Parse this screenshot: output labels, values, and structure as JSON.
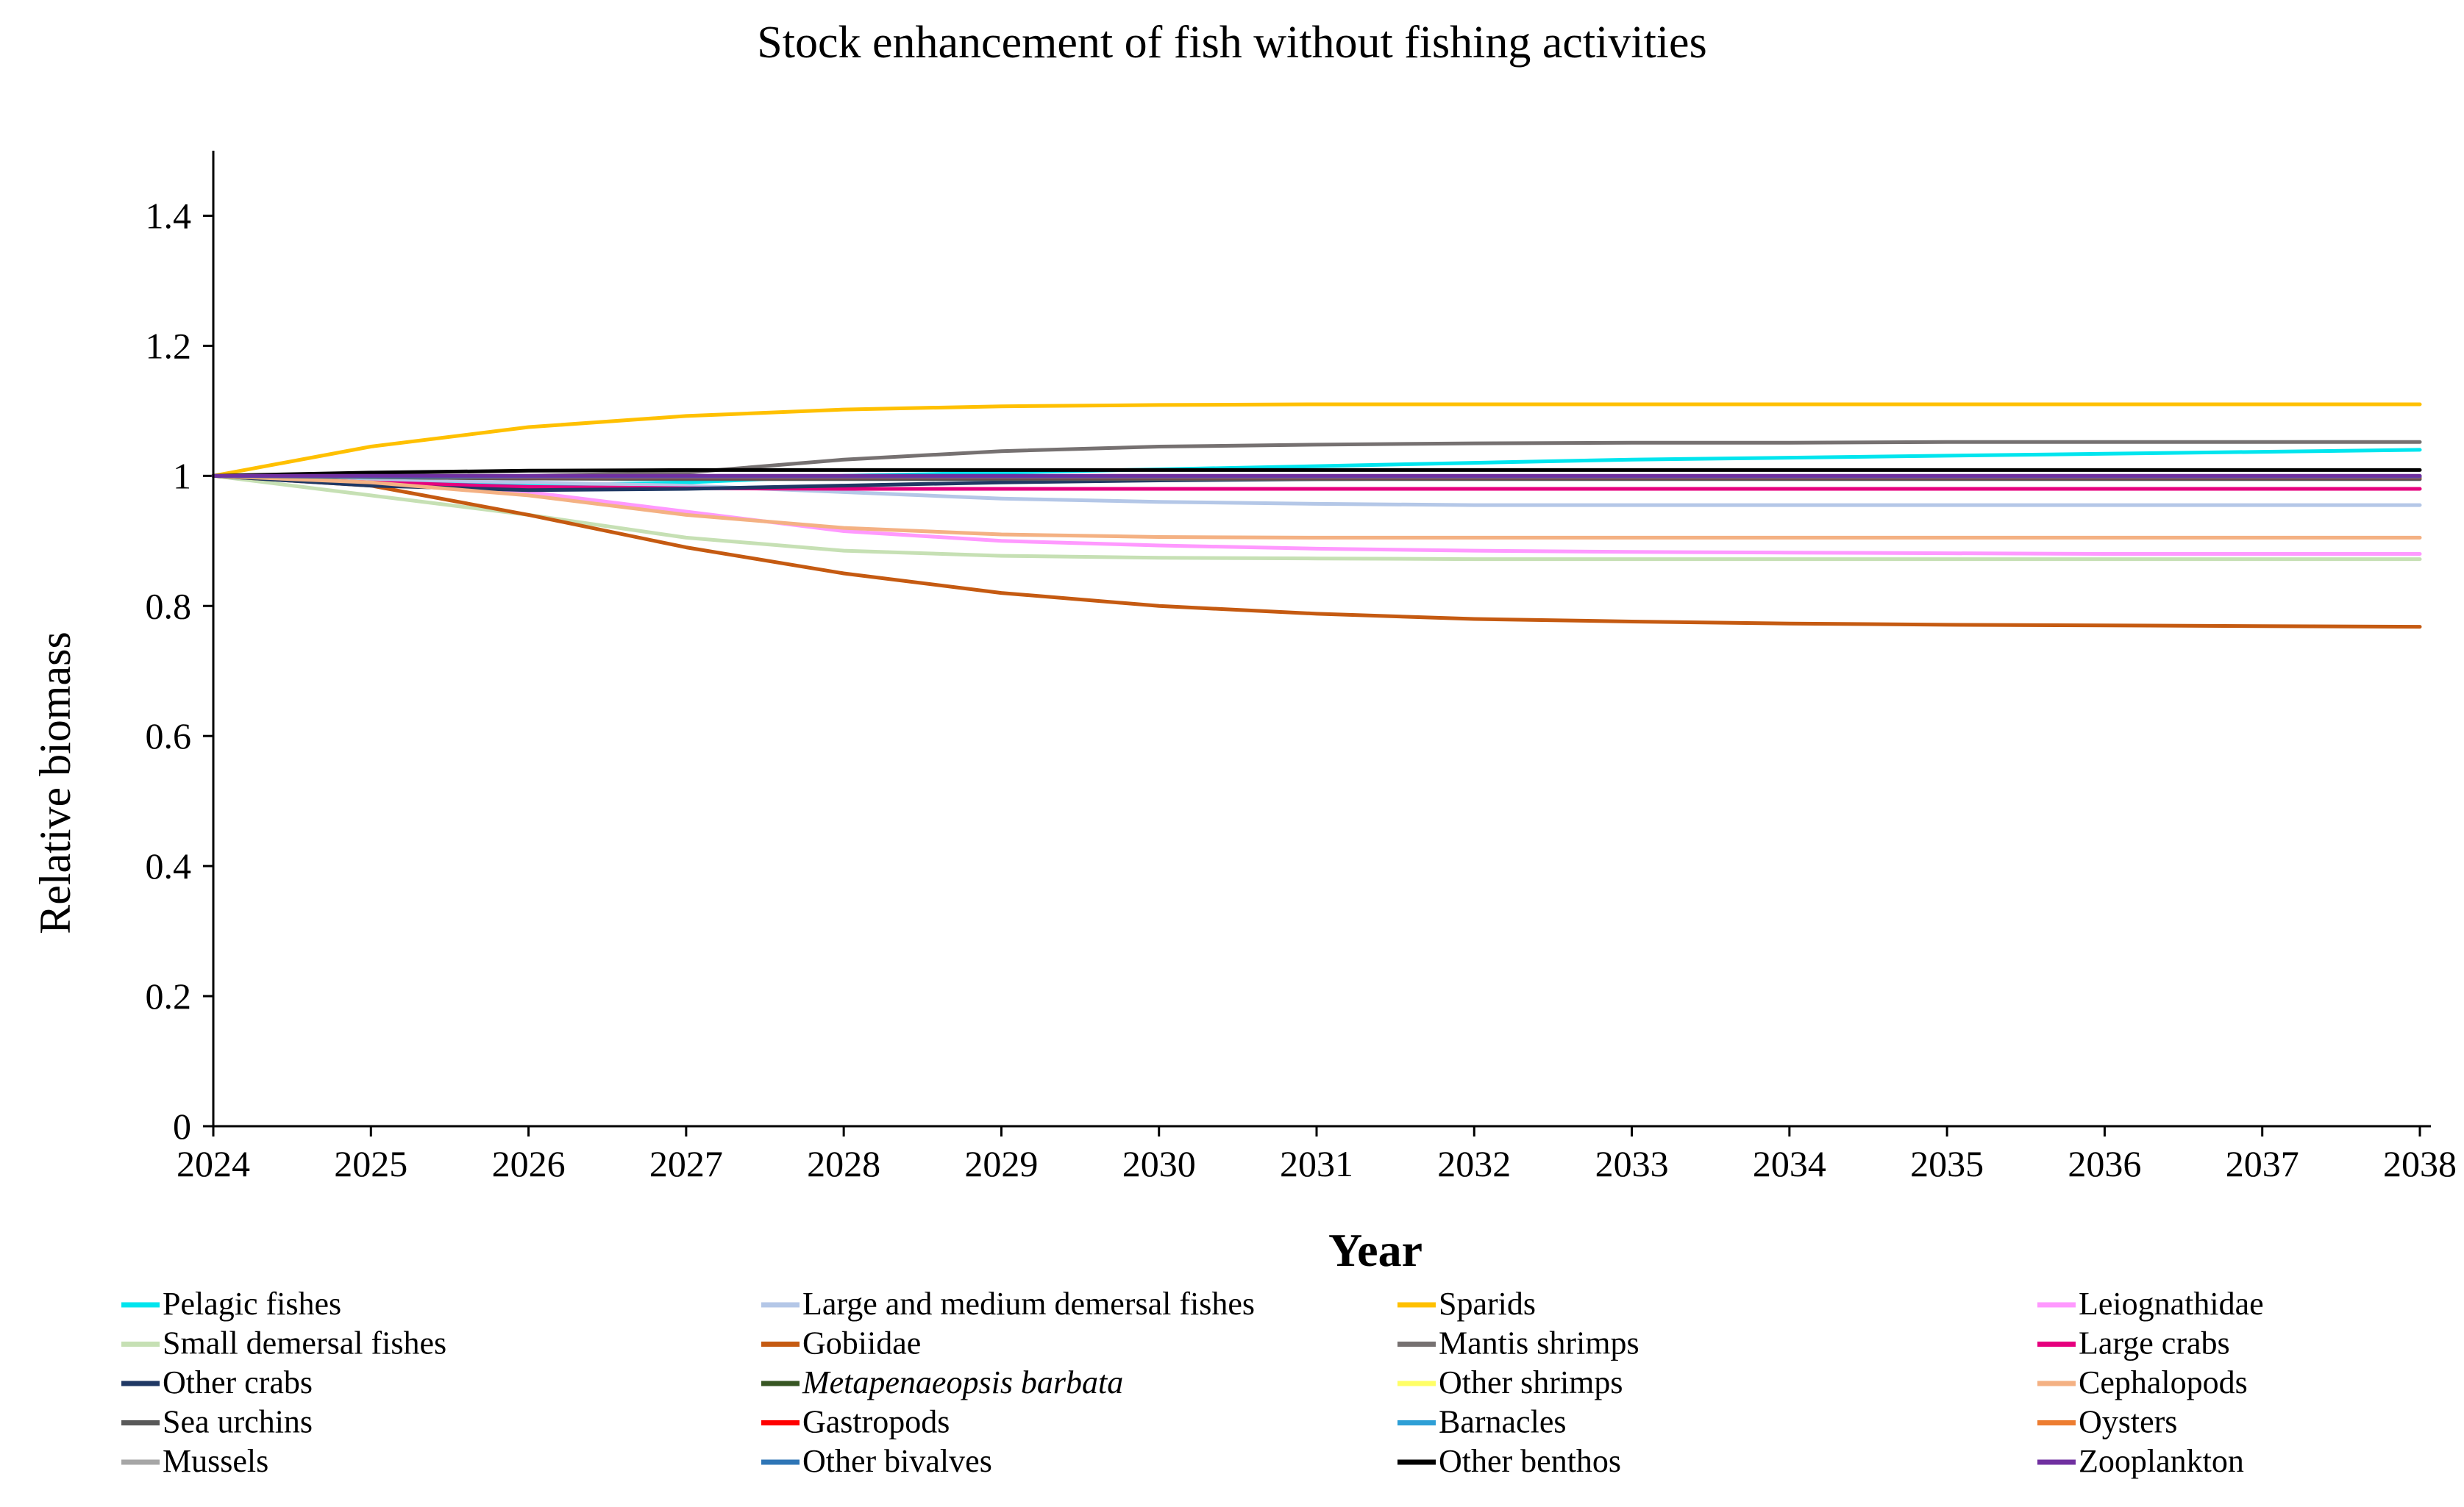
{
  "chart_data": {
    "type": "line",
    "title": "Stock enhancement of fish without fishing activities",
    "xlabel": "Year",
    "ylabel": "Relative biomass",
    "xlim": [
      2024,
      2038
    ],
    "ylim": [
      0,
      1.5
    ],
    "xticks": [
      2024,
      2025,
      2026,
      2027,
      2028,
      2029,
      2030,
      2031,
      2032,
      2033,
      2034,
      2035,
      2036,
      2037,
      2038
    ],
    "yticks": [
      {
        "value": 0,
        "label": "0"
      },
      {
        "value": 0.2,
        "label": "0.2"
      },
      {
        "value": 0.4,
        "label": "0.4"
      },
      {
        "value": 0.6,
        "label": "0.6"
      },
      {
        "value": 0.8,
        "label": "0.8"
      },
      {
        "value": 1,
        "label": "1"
      },
      {
        "value": 1.2,
        "label": "1.2"
      },
      {
        "value": 1.4,
        "label": "1.4"
      }
    ],
    "x": [
      2024,
      2025,
      2026,
      2027,
      2028,
      2029,
      2030,
      2031,
      2032,
      2033,
      2034,
      2035,
      2036,
      2037,
      2038
    ],
    "legend_position": "bottom",
    "series": [
      {
        "name": "Pelagic fishes",
        "color": "#00e5ee",
        "values": [
          1.0,
          0.99,
          0.985,
          0.99,
          1.0,
          1.005,
          1.01,
          1.015,
          1.02,
          1.025,
          1.028,
          1.031,
          1.034,
          1.037,
          1.04
        ]
      },
      {
        "name": "Large and medium demersal fishes",
        "color": "#b4c7e7",
        "values": [
          1.0,
          0.995,
          0.99,
          0.985,
          0.975,
          0.965,
          0.96,
          0.957,
          0.955,
          0.955,
          0.955,
          0.955,
          0.955,
          0.955,
          0.955
        ]
      },
      {
        "name": "Sparids",
        "color": "#ffc000",
        "values": [
          1.0,
          1.045,
          1.075,
          1.092,
          1.102,
          1.107,
          1.109,
          1.11,
          1.11,
          1.11,
          1.11,
          1.11,
          1.11,
          1.11,
          1.11
        ]
      },
      {
        "name": "Leiognathidae",
        "color": "#ff99ff",
        "values": [
          1.0,
          0.99,
          0.975,
          0.945,
          0.915,
          0.9,
          0.893,
          0.888,
          0.885,
          0.883,
          0.882,
          0.881,
          0.88,
          0.88,
          0.88
        ]
      },
      {
        "name": "Small demersal fishes",
        "color": "#c6e0b4",
        "values": [
          1.0,
          0.97,
          0.94,
          0.905,
          0.885,
          0.877,
          0.874,
          0.873,
          0.872,
          0.872,
          0.872,
          0.872,
          0.872,
          0.872,
          0.872
        ]
      },
      {
        "name": "Gobiidae",
        "color": "#c55a11",
        "values": [
          1.0,
          0.985,
          0.94,
          0.89,
          0.85,
          0.82,
          0.8,
          0.788,
          0.78,
          0.776,
          0.773,
          0.771,
          0.77,
          0.769,
          0.768
        ]
      },
      {
        "name": "Mantis shrimps",
        "color": "#767171",
        "values": [
          1.0,
          1.0,
          1.0,
          1.005,
          1.025,
          1.038,
          1.045,
          1.048,
          1.05,
          1.051,
          1.051,
          1.052,
          1.052,
          1.052,
          1.052
        ]
      },
      {
        "name": "Large crabs",
        "color": "#e6007e",
        "values": [
          1.0,
          0.99,
          0.983,
          0.981,
          0.98,
          0.98,
          0.98,
          0.98,
          0.98,
          0.98,
          0.98,
          0.98,
          0.98,
          0.98,
          0.98
        ]
      },
      {
        "name": "Other crabs",
        "color": "#1f3864",
        "values": [
          1.0,
          0.985,
          0.978,
          0.98,
          0.985,
          0.99,
          0.993,
          0.995,
          0.996,
          0.997,
          0.997,
          0.997,
          0.997,
          0.997,
          0.997
        ]
      },
      {
        "name": "Metapenaeopsis barbata",
        "color": "#375623",
        "italic": true,
        "values": [
          1.0,
          0.998,
          0.996,
          0.996,
          0.997,
          0.997,
          0.997,
          0.997,
          0.997,
          0.997,
          0.997,
          0.997,
          0.997,
          0.997,
          0.997
        ]
      },
      {
        "name": "Other shrimps",
        "color": "#ffff66",
        "values": [
          1.0,
          0.998,
          0.997,
          0.996,
          0.996,
          0.996,
          0.996,
          0.996,
          0.996,
          0.996,
          0.996,
          0.996,
          0.996,
          0.996,
          0.996
        ]
      },
      {
        "name": "Cephalopods",
        "color": "#f4b183",
        "values": [
          1.0,
          0.99,
          0.97,
          0.94,
          0.92,
          0.91,
          0.906,
          0.905,
          0.905,
          0.905,
          0.905,
          0.905,
          0.905,
          0.905,
          0.905
        ]
      },
      {
        "name": "Sea urchins",
        "color": "#595959",
        "values": [
          1.0,
          0.998,
          0.996,
          0.995,
          0.995,
          0.995,
          0.995,
          0.995,
          0.995,
          0.995,
          0.995,
          0.995,
          0.995,
          0.995,
          0.995
        ]
      },
      {
        "name": "Gastropods",
        "color": "#ff0000",
        "values": [
          1.0,
          0.999,
          0.998,
          0.998,
          0.998,
          0.998,
          0.998,
          0.998,
          0.998,
          0.998,
          0.998,
          0.998,
          0.998,
          0.998,
          0.998
        ]
      },
      {
        "name": "Barnacles",
        "color": "#2e9fd6",
        "values": [
          1.0,
          0.999,
          0.999,
          0.999,
          0.999,
          0.999,
          0.999,
          0.999,
          0.999,
          0.999,
          0.999,
          0.999,
          0.999,
          0.999,
          0.999
        ]
      },
      {
        "name": "Oysters",
        "color": "#ed7d31",
        "values": [
          1.0,
          0.999,
          0.999,
          0.999,
          0.999,
          0.999,
          0.999,
          0.999,
          0.999,
          0.999,
          0.999,
          0.999,
          0.999,
          0.999,
          0.999
        ]
      },
      {
        "name": "Mussels",
        "color": "#a6a6a6",
        "values": [
          1.0,
          0.999,
          0.999,
          0.999,
          0.999,
          0.999,
          0.999,
          0.999,
          0.999,
          0.999,
          0.999,
          0.999,
          0.999,
          0.999,
          0.999
        ]
      },
      {
        "name": "Other bivalves",
        "color": "#2e75b6",
        "values": [
          1.0,
          0.999,
          0.999,
          0.999,
          0.999,
          0.999,
          0.999,
          0.999,
          0.999,
          0.999,
          0.999,
          0.999,
          0.999,
          0.999,
          0.999
        ]
      },
      {
        "name": "Other benthos",
        "color": "#000000",
        "values": [
          1.0,
          1.005,
          1.008,
          1.009,
          1.009,
          1.009,
          1.009,
          1.009,
          1.009,
          1.009,
          1.009,
          1.009,
          1.009,
          1.009,
          1.009
        ]
      },
      {
        "name": "Zooplankton",
        "color": "#7030a0",
        "values": [
          1.0,
          1.0,
          1.0,
          1.0,
          1.0,
          1.0,
          1.0,
          1.0,
          1.0,
          1.0,
          1.0,
          1.0,
          1.0,
          1.0,
          1.0
        ]
      }
    ]
  }
}
